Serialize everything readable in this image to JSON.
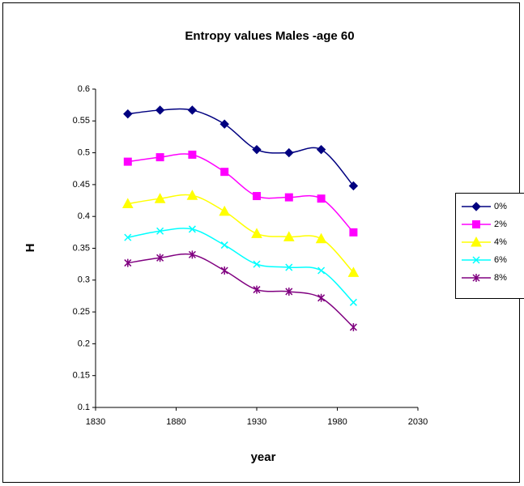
{
  "chart_data": {
    "type": "line",
    "title": "Entropy values Males -age 60",
    "x_label": "year",
    "y_label": "H",
    "x": [
      1850,
      1870,
      1890,
      1910,
      1930,
      1950,
      1970,
      1990
    ],
    "xlim": [
      1830,
      2030
    ],
    "xticks": [
      1830,
      1880,
      1930,
      1980,
      2030
    ],
    "ylim": [
      0.1,
      0.6
    ],
    "yticks": [
      0.1,
      0.15,
      0.2,
      0.25,
      0.3,
      0.35,
      0.4,
      0.45,
      0.5,
      0.55,
      0.6
    ],
    "grid": false,
    "smooth": true,
    "legend": "right",
    "series": [
      {
        "name": "0%",
        "color": "#000080",
        "marker": "diamond",
        "values": [
          0.561,
          0.567,
          0.567,
          0.545,
          0.505,
          0.5,
          0.505,
          0.448
        ]
      },
      {
        "name": "2%",
        "color": "#ff00ff",
        "marker": "square",
        "values": [
          0.486,
          0.493,
          0.497,
          0.47,
          0.432,
          0.43,
          0.428,
          0.375
        ]
      },
      {
        "name": "4%",
        "color": "#ffff00",
        "marker": "triangle",
        "values": [
          0.42,
          0.428,
          0.433,
          0.408,
          0.373,
          0.368,
          0.365,
          0.312
        ]
      },
      {
        "name": "6%",
        "color": "#00ffff",
        "marker": "x",
        "values": [
          0.367,
          0.377,
          0.38,
          0.355,
          0.325,
          0.32,
          0.315,
          0.265
        ]
      },
      {
        "name": "8%",
        "color": "#800080",
        "marker": "star",
        "values": [
          0.327,
          0.335,
          0.34,
          0.315,
          0.285,
          0.282,
          0.272,
          0.226
        ]
      }
    ]
  }
}
